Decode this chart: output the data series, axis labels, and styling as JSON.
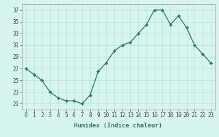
{
  "x": [
    0,
    1,
    2,
    3,
    4,
    5,
    6,
    7,
    8,
    9,
    10,
    11,
    12,
    13,
    14,
    15,
    16,
    17,
    18,
    19,
    20,
    21,
    22,
    23
  ],
  "y": [
    27,
    26,
    25,
    23,
    22,
    21.5,
    21.5,
    21,
    22.5,
    26.5,
    28,
    30,
    31,
    31.5,
    33,
    34.5,
    37,
    37,
    34.5,
    36,
    34,
    31,
    29.5,
    28
  ],
  "line_color": "#2e7d6e",
  "marker": "D",
  "marker_size": 2.2,
  "line_width": 1.0,
  "bg_color": "#d6f5f0",
  "grid_color": "#b8ddd8",
  "xlabel": "Humidex (Indice chaleur)",
  "xlim": [
    -0.5,
    23.5
  ],
  "ylim": [
    20,
    38
  ],
  "yticks": [
    21,
    23,
    25,
    27,
    29,
    31,
    33,
    35,
    37
  ],
  "xticks": [
    0,
    1,
    2,
    3,
    4,
    5,
    6,
    7,
    8,
    9,
    10,
    11,
    12,
    13,
    14,
    15,
    16,
    17,
    18,
    19,
    20,
    21,
    22,
    23
  ],
  "tick_fontsize": 5.5,
  "label_fontsize": 6.5
}
